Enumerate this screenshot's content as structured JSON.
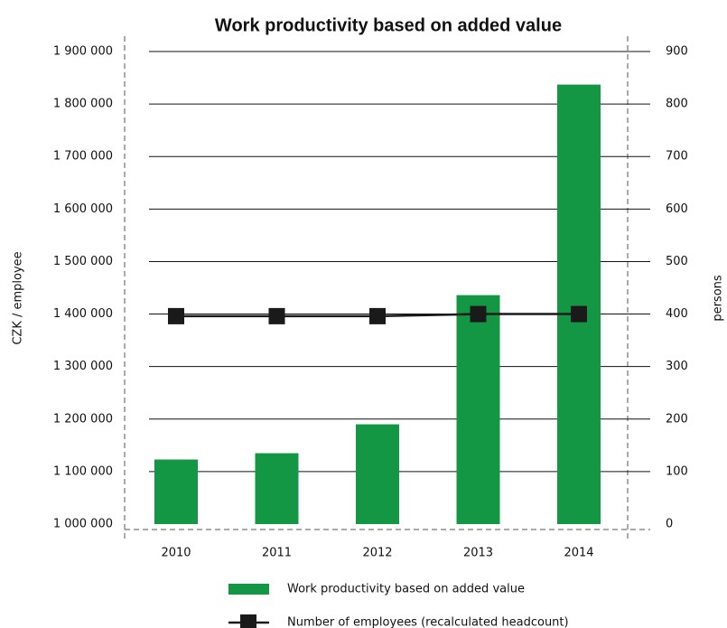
{
  "chart_data": {
    "type": "bar",
    "title": "Work productivity based on added value",
    "ylabel": "CZK / employee",
    "y2label": "persons",
    "categories": [
      "2010",
      "2011",
      "2012",
      "2013",
      "2014"
    ],
    "series": [
      {
        "name": "Work productivity based on added value",
        "type": "bar",
        "color": "#139744",
        "values": [
          1123000,
          1135000,
          1190000,
          1436000,
          1837000
        ]
      },
      {
        "name": "Number of employees (recalculated headcount)",
        "type": "line",
        "axis": "y2",
        "color": "#1a1a1a",
        "values": [
          396,
          396,
          396,
          400,
          400
        ]
      }
    ],
    "ylim": [
      1000000,
      1900000
    ],
    "yticks": [
      {
        "value": 1000000,
        "label": "1 000 000"
      },
      {
        "value": 1100000,
        "label": "1 100 000"
      },
      {
        "value": 1200000,
        "label": "1 200 000"
      },
      {
        "value": 1300000,
        "label": "1 300 000"
      },
      {
        "value": 1400000,
        "label": "1 400 000"
      },
      {
        "value": 1500000,
        "label": "1 500 000"
      },
      {
        "value": 1600000,
        "label": "1 600 000"
      },
      {
        "value": 1700000,
        "label": "1 700 000"
      },
      {
        "value": 1800000,
        "label": "1 800 000"
      },
      {
        "value": 1900000,
        "label": "1 900 000"
      }
    ],
    "y2lim": [
      0,
      900
    ],
    "y2ticks": [
      0,
      100,
      200,
      300,
      400,
      500,
      600,
      700,
      800,
      900
    ],
    "grid": true
  }
}
